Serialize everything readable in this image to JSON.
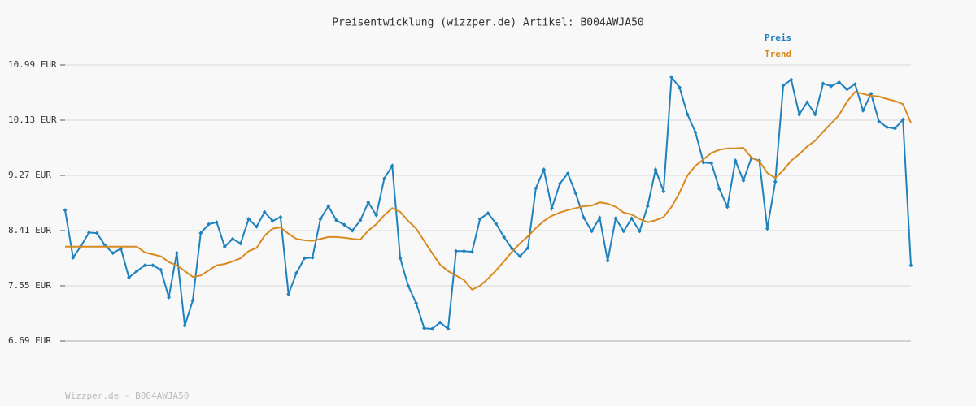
{
  "chart_data": {
    "type": "line",
    "title": "Preisentwicklung (wizzper.de) Artikel: B004AWJA50",
    "footer": "Wizzper.de - B004AWJA50",
    "legend": "top-right",
    "grid": true,
    "ylim": [
      6.69,
      10.99
    ],
    "yticks": [
      {
        "value": 6.69,
        "label": "6.69 EUR"
      },
      {
        "value": 7.55,
        "label": "7.55 EUR"
      },
      {
        "value": 8.41,
        "label": "8.41 EUR"
      },
      {
        "value": 9.27,
        "label": "9.27 EUR"
      },
      {
        "value": 10.13,
        "label": "10.13 EUR"
      },
      {
        "value": 10.99,
        "label": "10.99 EUR"
      }
    ],
    "categories": [
      null,
      null,
      null,
      null,
      null,
      null,
      null,
      null,
      null,
      null,
      null,
      null,
      null,
      null,
      null,
      null,
      null,
      null,
      null,
      null,
      null,
      null,
      null,
      null,
      null,
      null,
      null,
      null,
      null,
      null,
      null,
      null,
      null,
      null,
      null,
      null,
      null,
      null,
      null,
      null,
      null,
      null,
      null,
      null,
      null,
      null,
      null,
      null,
      null,
      null,
      null,
      null,
      null,
      null,
      null,
      null,
      null,
      null,
      null,
      null,
      null,
      null,
      null,
      null,
      null,
      null,
      null,
      null,
      null,
      null,
      null,
      null,
      null,
      null,
      null,
      null,
      null,
      null,
      null,
      null,
      null,
      null,
      null,
      null,
      null,
      null,
      null,
      null,
      null,
      null,
      null,
      null,
      null,
      null,
      null,
      null,
      null,
      null,
      null,
      null,
      null,
      null,
      null,
      null,
      null,
      null,
      null
    ],
    "series": [
      {
        "name": "Preis",
        "color": "#1f82be",
        "markers": true,
        "values": [
          8.73,
          7.99,
          8.17,
          8.38,
          8.37,
          8.18,
          8.06,
          8.13,
          7.68,
          7.78,
          7.87,
          7.87,
          7.8,
          7.37,
          8.06,
          6.93,
          7.32,
          8.37,
          8.51,
          8.54,
          8.16,
          8.28,
          8.21,
          8.59,
          8.47,
          8.7,
          8.56,
          8.62,
          7.42,
          7.75,
          7.98,
          7.99,
          8.59,
          8.79,
          8.57,
          8.5,
          8.41,
          8.57,
          8.85,
          8.65,
          9.22,
          9.42,
          7.98,
          7.55,
          7.28,
          6.89,
          6.88,
          6.98,
          6.88,
          8.09,
          8.09,
          8.08,
          8.59,
          8.68,
          8.52,
          8.31,
          8.13,
          8.01,
          8.14,
          9.07,
          9.36,
          8.76,
          9.14,
          9.3,
          8.99,
          8.61,
          8.4,
          8.61,
          7.94,
          8.6,
          8.4,
          8.6,
          8.4,
          8.79,
          9.36,
          9.02,
          10.8,
          10.64,
          10.22,
          9.94,
          9.47,
          9.46,
          9.06,
          8.78,
          9.5,
          9.19,
          9.54,
          9.5,
          8.44,
          9.17,
          10.67,
          10.76,
          10.22,
          10.41,
          10.22,
          10.7,
          10.66,
          10.72,
          10.61,
          10.69,
          10.28,
          10.54,
          10.11,
          10.02,
          10.0,
          10.14,
          7.87
        ]
      },
      {
        "name": "Trend",
        "color": "#d98a1f",
        "markers": false,
        "values": [
          8.16,
          8.16,
          8.16,
          8.16,
          8.16,
          8.16,
          8.16,
          8.16,
          8.16,
          8.16,
          8.07,
          8.04,
          8.01,
          7.92,
          7.87,
          7.78,
          7.69,
          7.71,
          7.79,
          7.87,
          7.89,
          7.93,
          7.98,
          8.09,
          8.14,
          8.33,
          8.44,
          8.46,
          8.36,
          8.28,
          8.26,
          8.25,
          8.28,
          8.31,
          8.31,
          8.3,
          8.28,
          8.27,
          8.41,
          8.51,
          8.65,
          8.76,
          8.7,
          8.56,
          8.44,
          8.25,
          8.06,
          7.88,
          7.78,
          7.71,
          7.64,
          7.49,
          7.55,
          7.66,
          7.79,
          7.93,
          8.08,
          8.21,
          8.32,
          8.45,
          8.56,
          8.64,
          8.69,
          8.73,
          8.76,
          8.79,
          8.8,
          8.85,
          8.83,
          8.78,
          8.69,
          8.66,
          8.59,
          8.54,
          8.57,
          8.62,
          8.78,
          9.0,
          9.27,
          9.42,
          9.52,
          9.62,
          9.67,
          9.69,
          9.69,
          9.7,
          9.55,
          9.49,
          9.31,
          9.23,
          9.35,
          9.5,
          9.6,
          9.72,
          9.81,
          9.95,
          10.08,
          10.21,
          10.42,
          10.57,
          10.54,
          10.51,
          10.5,
          10.46,
          10.43,
          10.38,
          10.09
        ]
      }
    ]
  }
}
